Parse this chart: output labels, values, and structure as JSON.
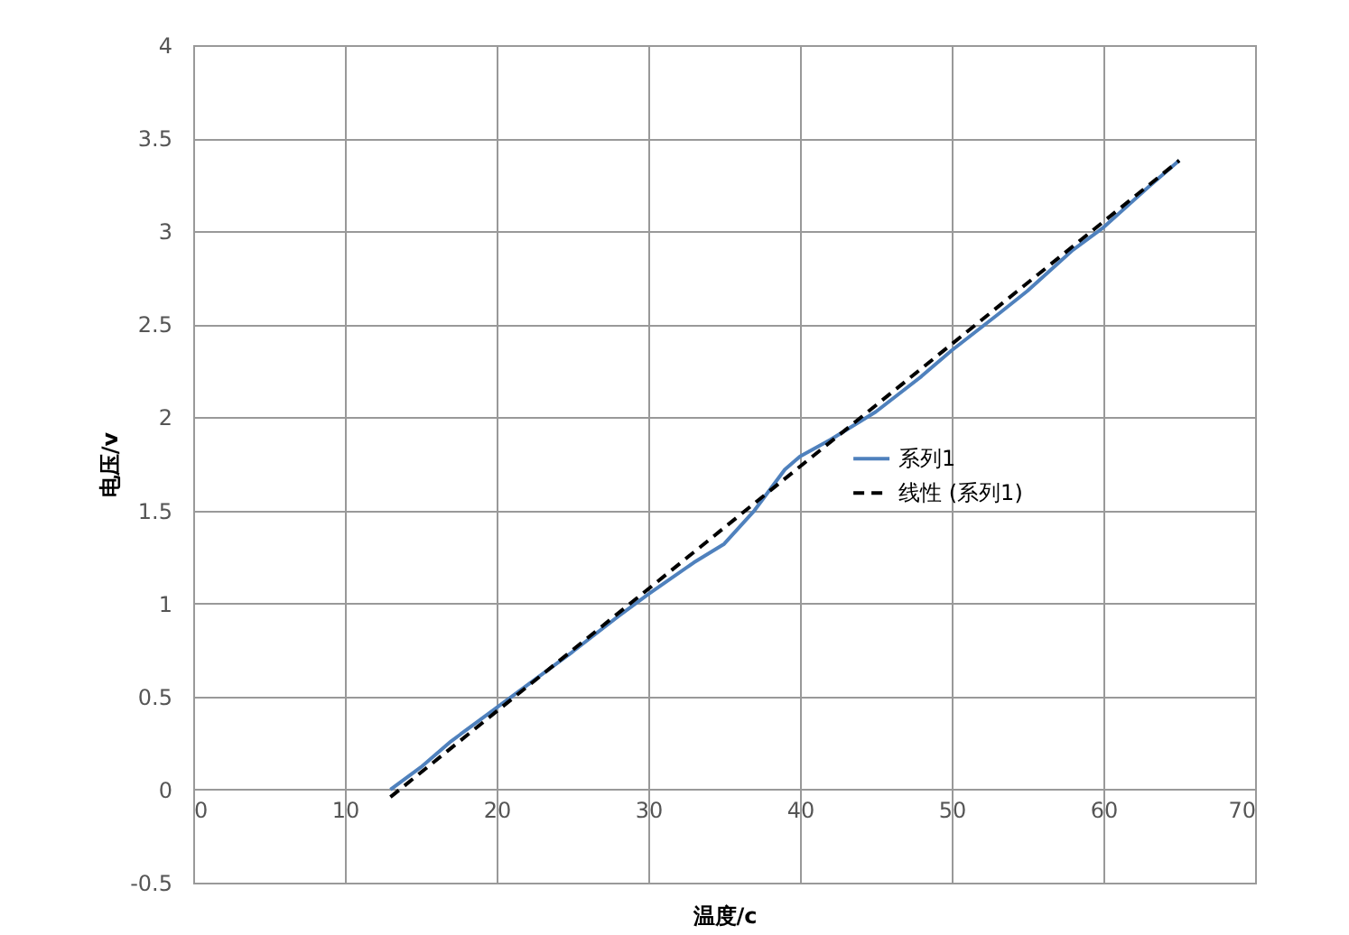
{
  "chart_data": {
    "type": "line",
    "xlabel": "温度/c",
    "ylabel": "电压/v",
    "xlim": [
      0,
      70
    ],
    "xticks": [
      0,
      10,
      20,
      30,
      40,
      50,
      60,
      70
    ],
    "ylim": [
      -0.5,
      4
    ],
    "yticks": [
      -0.5,
      0,
      0.5,
      1,
      1.5,
      2,
      2.5,
      3,
      3.5,
      4
    ],
    "grid": true,
    "legend": "right",
    "series": [
      {
        "name": "系列1",
        "color": "#4f81bd",
        "line_style": "solid",
        "x": [
          13,
          15,
          17,
          20,
          22,
          25,
          28,
          30,
          33,
          35,
          37,
          39,
          40,
          42,
          45,
          48,
          50,
          53,
          55,
          58,
          60,
          63,
          65
        ],
        "values": [
          0,
          0.12,
          0.26,
          0.44,
          0.56,
          0.74,
          0.93,
          1.05,
          1.22,
          1.32,
          1.5,
          1.72,
          1.79,
          1.88,
          2.03,
          2.22,
          2.36,
          2.55,
          2.68,
          2.9,
          3.02,
          3.24,
          3.38
        ]
      },
      {
        "name": "线性 (系列1)",
        "color": "#000000",
        "type": "line",
        "line_style": "dashed",
        "x": [
          13,
          65
        ],
        "values": [
          -0.04,
          3.38
        ]
      }
    ]
  }
}
